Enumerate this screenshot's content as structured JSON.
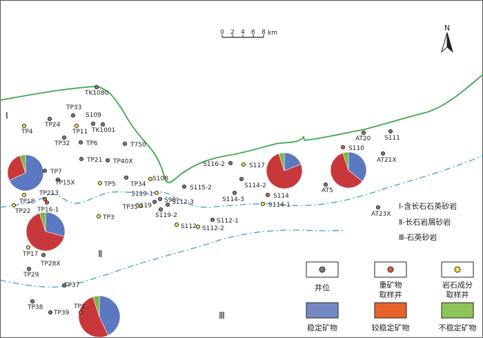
{
  "scale_bar": {
    "ticks": [
      "0",
      "2",
      "4",
      "6",
      "8"
    ],
    "unit": "km"
  },
  "north_label": "N",
  "zones": {
    "z1": "Ⅰ",
    "z2": "Ⅱ",
    "z3": "Ⅲ"
  },
  "zone_legend": [
    "Ⅰ-含长石石英砂岩",
    "Ⅱ-长石岩屑砂岩",
    "Ⅲ-石英砂岩"
  ],
  "legend": {
    "well": "井位",
    "heavy": [
      "重矿物",
      "取样井"
    ],
    "rock": [
      "岩石成分",
      "取样井"
    ],
    "stable": "稳定矿物",
    "less_stable": "较稳定矿物",
    "unstable": "不稳定矿物"
  },
  "colors": {
    "stable": "#5b78c0",
    "less_stable": "#c8383a",
    "unstable": "#7ab648",
    "heavy_fill": "#e25b35",
    "rock_fill": "#f2e23a",
    "well_fill": "#7b7b7b",
    "boundary": "#3aa845",
    "zone_line": "#2ba3d6",
    "legend_stable": "#7789c4",
    "legend_less_stable": "#e8632c",
    "legend_unstable": "#8cc45a"
  },
  "pies": [
    {
      "id": "pie-west",
      "stable": 0.68,
      "less_stable": 0.27,
      "unstable": 0.05
    },
    {
      "id": "pie-tp16",
      "stable": 0.29,
      "less_stable": 0.66,
      "unstable": 0.05
    },
    {
      "id": "pie-s114",
      "stable": 0.19,
      "less_stable": 0.76,
      "unstable": 0.05
    },
    {
      "id": "pie-at5",
      "stable": 0.36,
      "less_stable": 0.59,
      "unstable": 0.05
    },
    {
      "id": "pie-tp2",
      "stable": 0.43,
      "less_stable": 0.52,
      "unstable": 0.05
    }
  ],
  "wells": [
    {
      "label": "TK1080",
      "type": "well"
    },
    {
      "label": "TP33",
      "type": "well"
    },
    {
      "label": "TP24",
      "type": "well"
    },
    {
      "label": "TP4",
      "type": "rock"
    },
    {
      "label": "S109",
      "type": "well"
    },
    {
      "label": "TP11",
      "type": "rock"
    },
    {
      "label": "TK1001",
      "type": "well"
    },
    {
      "label": "TP32",
      "type": "well"
    },
    {
      "label": "TP6",
      "type": "well"
    },
    {
      "label": "T750",
      "type": "well"
    },
    {
      "label": "TP21",
      "type": "well"
    },
    {
      "label": "TP40X",
      "type": "well"
    },
    {
      "label": "TP7",
      "type": "well"
    },
    {
      "label": "TP15X",
      "type": "well"
    },
    {
      "label": "TP5",
      "type": "rock"
    },
    {
      "label": "TP34",
      "type": "well"
    },
    {
      "label": "S108",
      "type": "rock"
    },
    {
      "label": "TP213",
      "type": "heavy"
    },
    {
      "label": "TP18",
      "type": "rock"
    },
    {
      "label": "TP22",
      "type": "rock"
    },
    {
      "label": "TP16-1",
      "type": "heavy"
    },
    {
      "label": "S119-1",
      "type": "rock"
    },
    {
      "label": "TP35",
      "type": "rock"
    },
    {
      "label": "S119",
      "type": "well"
    },
    {
      "label": "S98",
      "type": "well"
    },
    {
      "label": "S112-3",
      "type": "well"
    },
    {
      "label": "S119-2",
      "type": "well"
    },
    {
      "label": "TP3",
      "type": "rock"
    },
    {
      "label": "S112",
      "type": "rock"
    },
    {
      "label": "S112-1",
      "type": "well"
    },
    {
      "label": "S112-2",
      "type": "rock"
    },
    {
      "label": "S116-2",
      "type": "well"
    },
    {
      "label": "S117",
      "type": "rock"
    },
    {
      "label": "S115-2",
      "type": "well"
    },
    {
      "label": "S114-2",
      "type": "well"
    },
    {
      "label": "S114-3",
      "type": "well"
    },
    {
      "label": "S114",
      "type": "heavy"
    },
    {
      "label": "S114-1",
      "type": "rock"
    },
    {
      "label": "AT20",
      "type": "well"
    },
    {
      "label": "S111",
      "type": "well"
    },
    {
      "label": "S110",
      "type": "heavy"
    },
    {
      "label": "AT21X",
      "type": "well"
    },
    {
      "label": "AT5",
      "type": "well"
    },
    {
      "label": "AT23X",
      "type": "well"
    },
    {
      "label": "TP17",
      "type": "rock"
    },
    {
      "label": "TP28X",
      "type": "well"
    },
    {
      "label": "TP29",
      "type": "well"
    },
    {
      "label": "TP37",
      "type": "well"
    },
    {
      "label": "TP38",
      "type": "well"
    },
    {
      "label": "TP39",
      "type": "well"
    },
    {
      "label": "TP2",
      "type": "heavy"
    }
  ]
}
